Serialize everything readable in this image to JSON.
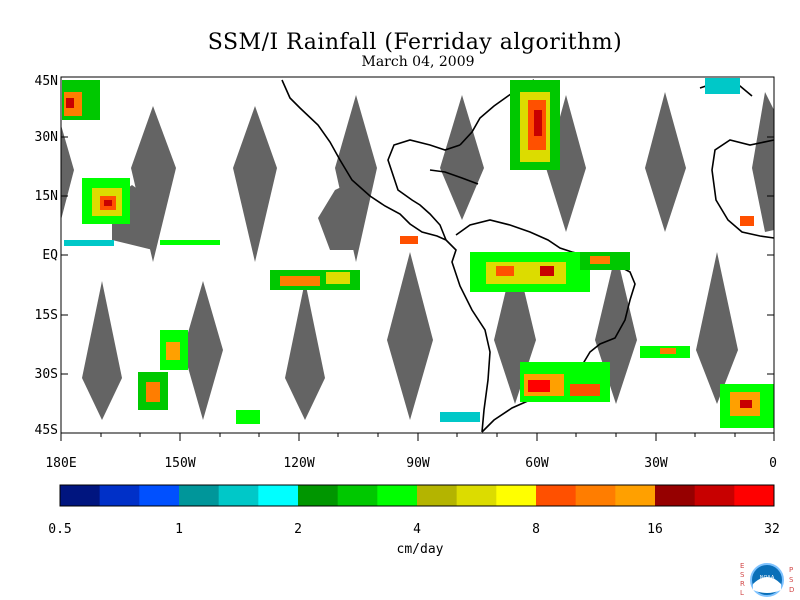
{
  "map": {
    "title": "SSM/I Rainfall (Ferriday algorithm)",
    "date": "March 04, 2009",
    "lat_labels": [
      "45N",
      "30N",
      "15N",
      "EQ",
      "15S",
      "30S",
      "45S"
    ],
    "lon_labels": [
      "180E",
      "150W",
      "120W",
      "90W",
      "60W",
      "30W",
      "0"
    ],
    "lon_range": [
      -180,
      0
    ],
    "lat_range": [
      -45,
      45
    ],
    "units": "cm/day",
    "colors": {
      "land": "#000000",
      "no_data_swath": "#646464",
      "background": "#ffffff"
    }
  },
  "colorbar": {
    "tick_labels": [
      "0.5",
      "1",
      "2",
      "4",
      "8",
      "16",
      "32"
    ],
    "colors": [
      "#00157f",
      "#0030c8",
      "#0050ff",
      "#00969a",
      "#00c8c8",
      "#00ffff",
      "#009600",
      "#00c800",
      "#00ff00",
      "#b4b400",
      "#dcdc00",
      "#ffff00",
      "#ff5000",
      "#ff7d00",
      "#ffa000",
      "#960000",
      "#c80000",
      "#ff0000"
    ]
  },
  "logo": {
    "left_letters": [
      "E",
      "S",
      "R",
      "L"
    ],
    "right_letters": [
      "P",
      "S",
      "D"
    ],
    "emblem_text": "NOAA"
  }
}
